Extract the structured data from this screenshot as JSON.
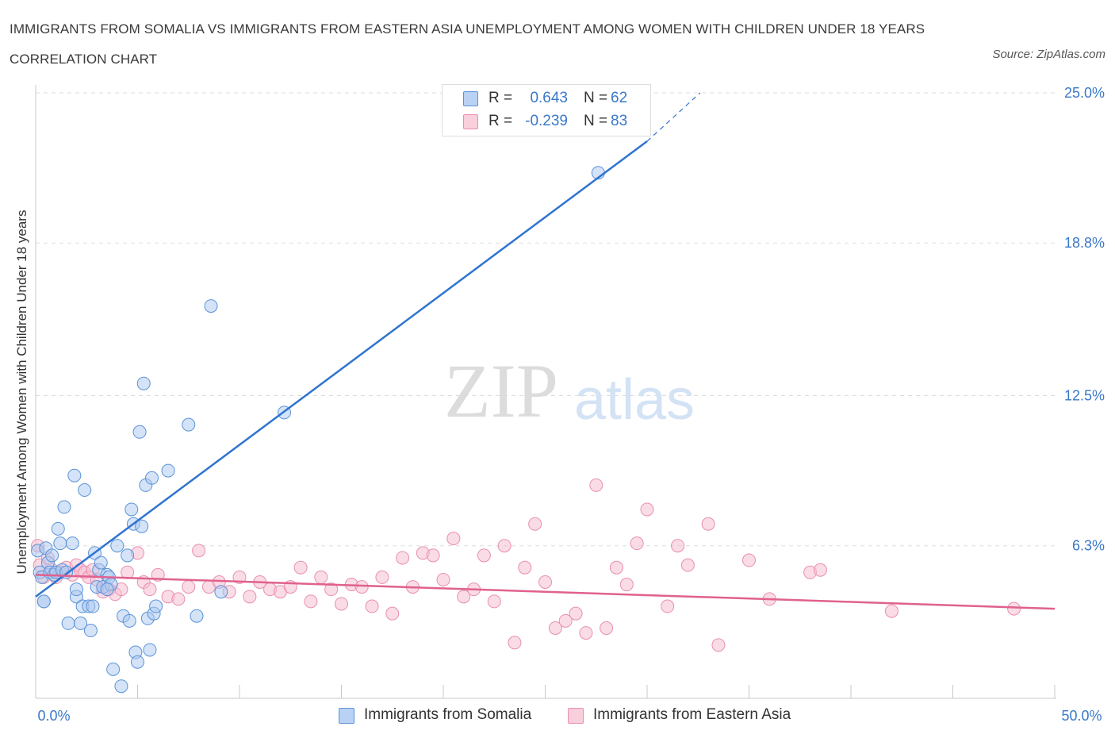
{
  "title": "IMMIGRANTS FROM SOMALIA VS IMMIGRANTS FROM EASTERN ASIA UNEMPLOYMENT AMONG WOMEN WITH CHILDREN UNDER 18 YEARS CORRELATION CHART",
  "source": "Source: ZipAtlas.com",
  "watermark": {
    "zip": "ZIP",
    "atlas": "atlas"
  },
  "legend": {
    "somalia": {
      "r_label": "R =",
      "r_value": "0.643",
      "n_label": "N =",
      "n_value": "62"
    },
    "easia": {
      "r_label": "R =",
      "r_value": "-0.239",
      "n_label": "N =",
      "n_value": "83"
    }
  },
  "bottom_legend": {
    "somalia": "Immigrants from Somalia",
    "easia": "Immigrants from Eastern Asia"
  },
  "colors": {
    "somalia_fill": "#a9c8f0",
    "somalia_stroke": "#5b93d8",
    "somalia_line": "#2f74d0",
    "easia_fill": "#f6bfd1",
    "easia_stroke": "#e98fae",
    "easia_line": "#e0618f",
    "tick_label": "#3a78c9",
    "grid": "#dddddd"
  },
  "chart_data": {
    "type": "scatter",
    "title": "IMMIGRANTS FROM SOMALIA VS IMMIGRANTS FROM EASTERN ASIA UNEMPLOYMENT AMONG WOMEN WITH CHILDREN UNDER 18 YEARS CORRELATION CHART",
    "xlabel": "",
    "ylabel": "Unemployment Among Women with Children Under 18 years",
    "xlim": [
      0,
      50
    ],
    "ylim": [
      0,
      25
    ],
    "x_tick_labels": [
      "0.0%",
      "50.0%"
    ],
    "y_ticks": [
      {
        "value": 6.3,
        "label": "6.3%"
      },
      {
        "value": 12.5,
        "label": "12.5%"
      },
      {
        "value": 18.8,
        "label": "18.8%"
      },
      {
        "value": 25.0,
        "label": "25.0%"
      }
    ],
    "grid": true,
    "legend_position": "top-center",
    "series": [
      {
        "name": "Immigrants from Somalia",
        "r": 0.643,
        "n": 62,
        "trend": {
          "x0": 0.0,
          "y0": 4.2,
          "x1": 30.0,
          "y1": 23.0,
          "dash_to_x": 32.6,
          "dash_to_y": 25.0
        },
        "points": [
          [
            0.1,
            6.1
          ],
          [
            0.2,
            5.2
          ],
          [
            0.3,
            5.0
          ],
          [
            0.4,
            4.0
          ],
          [
            0.5,
            6.2
          ],
          [
            0.6,
            5.6
          ],
          [
            0.7,
            5.2
          ],
          [
            0.8,
            5.9
          ],
          [
            0.9,
            5.1
          ],
          [
            1.0,
            5.2
          ],
          [
            1.1,
            7.0
          ],
          [
            1.2,
            6.4
          ],
          [
            1.3,
            5.3
          ],
          [
            1.4,
            7.9
          ],
          [
            1.5,
            5.2
          ],
          [
            1.6,
            3.1
          ],
          [
            1.8,
            6.4
          ],
          [
            1.9,
            9.2
          ],
          [
            2.0,
            4.2
          ],
          [
            2.2,
            3.1
          ],
          [
            2.3,
            3.8
          ],
          [
            2.4,
            8.6
          ],
          [
            2.6,
            3.8
          ],
          [
            2.7,
            2.8
          ],
          [
            2.8,
            3.8
          ],
          [
            2.9,
            6.0
          ],
          [
            3.0,
            4.6
          ],
          [
            3.1,
            5.3
          ],
          [
            3.2,
            5.6
          ],
          [
            3.3,
            4.6
          ],
          [
            3.5,
            5.1
          ],
          [
            3.6,
            5.0
          ],
          [
            3.7,
            4.7
          ],
          [
            3.8,
            1.2
          ],
          [
            4.0,
            6.3
          ],
          [
            4.2,
            0.5
          ],
          [
            4.3,
            3.4
          ],
          [
            4.5,
            5.9
          ],
          [
            4.6,
            3.2
          ],
          [
            4.7,
            7.8
          ],
          [
            4.8,
            7.2
          ],
          [
            4.9,
            1.9
          ],
          [
            5.0,
            1.5
          ],
          [
            5.1,
            11.0
          ],
          [
            5.2,
            7.1
          ],
          [
            5.3,
            13.0
          ],
          [
            5.4,
            8.8
          ],
          [
            5.5,
            3.3
          ],
          [
            5.6,
            2.0
          ],
          [
            5.7,
            9.1
          ],
          [
            5.8,
            3.5
          ],
          [
            5.9,
            3.8
          ],
          [
            6.5,
            9.4
          ],
          [
            7.5,
            11.3
          ],
          [
            7.9,
            3.4
          ],
          [
            8.6,
            16.2
          ],
          [
            9.1,
            4.4
          ],
          [
            12.2,
            11.8
          ],
          [
            0.4,
            4.0
          ],
          [
            2.0,
            4.5
          ],
          [
            3.5,
            4.5
          ],
          [
            27.6,
            21.7
          ]
        ]
      },
      {
        "name": "Immigrants from Eastern Asia",
        "r": -0.239,
        "n": 83,
        "trend": {
          "x0": 0.0,
          "y0": 5.1,
          "x1": 50.0,
          "y1": 3.7
        },
        "points": [
          [
            0.1,
            6.3
          ],
          [
            0.2,
            5.5
          ],
          [
            0.4,
            5.0
          ],
          [
            0.6,
            5.8
          ],
          [
            0.8,
            5.3
          ],
          [
            1.0,
            5.0
          ],
          [
            1.2,
            5.2
          ],
          [
            1.5,
            5.4
          ],
          [
            1.8,
            5.1
          ],
          [
            2.0,
            5.5
          ],
          [
            2.2,
            5.3
          ],
          [
            2.4,
            5.2
          ],
          [
            2.6,
            5.0
          ],
          [
            2.8,
            5.3
          ],
          [
            3.0,
            4.9
          ],
          [
            3.3,
            4.4
          ],
          [
            3.6,
            4.5
          ],
          [
            3.9,
            4.3
          ],
          [
            4.2,
            4.5
          ],
          [
            4.5,
            5.2
          ],
          [
            5.0,
            6.0
          ],
          [
            5.3,
            4.8
          ],
          [
            5.6,
            4.5
          ],
          [
            6.0,
            5.1
          ],
          [
            6.5,
            4.2
          ],
          [
            7.0,
            4.1
          ],
          [
            7.5,
            4.6
          ],
          [
            8.0,
            6.1
          ],
          [
            8.5,
            4.6
          ],
          [
            9.0,
            4.8
          ],
          [
            9.5,
            4.4
          ],
          [
            10.0,
            5.0
          ],
          [
            10.5,
            4.2
          ],
          [
            11.0,
            4.8
          ],
          [
            11.5,
            4.5
          ],
          [
            12.0,
            4.4
          ],
          [
            12.5,
            4.6
          ],
          [
            13.0,
            5.4
          ],
          [
            13.5,
            4.0
          ],
          [
            14.0,
            5.0
          ],
          [
            14.5,
            4.5
          ],
          [
            15.0,
            3.9
          ],
          [
            15.5,
            4.7
          ],
          [
            16.0,
            4.6
          ],
          [
            16.5,
            3.8
          ],
          [
            17.0,
            5.0
          ],
          [
            17.5,
            3.5
          ],
          [
            18.0,
            5.8
          ],
          [
            18.5,
            4.6
          ],
          [
            19.0,
            6.0
          ],
          [
            19.5,
            5.9
          ],
          [
            20.0,
            4.9
          ],
          [
            20.5,
            6.6
          ],
          [
            21.0,
            4.2
          ],
          [
            21.5,
            4.5
          ],
          [
            22.0,
            5.9
          ],
          [
            22.5,
            4.0
          ],
          [
            23.0,
            6.3
          ],
          [
            23.5,
            2.3
          ],
          [
            24.0,
            5.4
          ],
          [
            24.5,
            7.2
          ],
          [
            25.0,
            4.8
          ],
          [
            25.5,
            2.9
          ],
          [
            26.0,
            3.2
          ],
          [
            26.5,
            3.5
          ],
          [
            27.0,
            2.7
          ],
          [
            27.5,
            8.8
          ],
          [
            28.0,
            2.9
          ],
          [
            28.5,
            5.4
          ],
          [
            29.0,
            4.7
          ],
          [
            29.5,
            6.4
          ],
          [
            30.0,
            7.8
          ],
          [
            31.0,
            3.8
          ],
          [
            31.5,
            6.3
          ],
          [
            32.0,
            5.5
          ],
          [
            33.0,
            7.2
          ],
          [
            33.5,
            2.2
          ],
          [
            35.0,
            5.7
          ],
          [
            36.0,
            4.1
          ],
          [
            38.0,
            5.2
          ],
          [
            38.5,
            5.3
          ],
          [
            42.0,
            3.6
          ],
          [
            48.0,
            3.7
          ]
        ]
      }
    ]
  }
}
